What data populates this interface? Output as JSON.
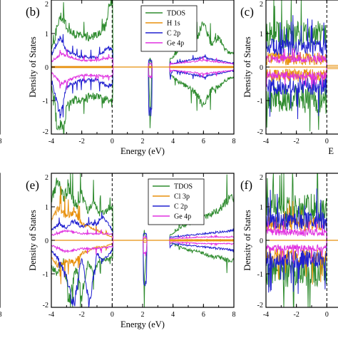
{
  "panels": [
    {
      "id": "a-partial",
      "letter": "",
      "x_label": "",
      "x_ticks": [
        "8"
      ],
      "y_ticks": [],
      "legend": [],
      "x_range": [
        -4,
        8
      ],
      "y_range": [
        -2,
        2
      ]
    },
    {
      "id": "b",
      "letter": "(b)",
      "x_label": "Energy (eV)",
      "y_label": "Density of States",
      "x_ticks": [
        "-4",
        "-2",
        "0",
        "2",
        "4",
        "6",
        "8"
      ],
      "y_ticks": [
        "2",
        "1",
        "0",
        "-1",
        "-2"
      ],
      "legend": [
        "TDOS",
        "H 1s",
        "C 2p",
        "Ge 4p"
      ],
      "x_range": [
        -4,
        8
      ],
      "y_range": [
        -2,
        2
      ]
    },
    {
      "id": "c",
      "letter": "(c)",
      "x_label": "E",
      "y_label": "Density of States",
      "x_ticks": [
        "-4",
        "-2",
        "0"
      ],
      "y_ticks": [
        "2",
        "1",
        "0",
        "-1",
        "-2"
      ],
      "legend": [],
      "x_range": [
        -4,
        8
      ],
      "y_range": [
        -2,
        2
      ]
    },
    {
      "id": "d-partial",
      "letter": "",
      "x_label": "",
      "x_ticks": [
        "8"
      ],
      "y_ticks": [],
      "legend": [],
      "x_range": [
        -4,
        8
      ],
      "y_range": [
        -2,
        2
      ]
    },
    {
      "id": "e",
      "letter": "(e)",
      "x_label": "Energy (eV)",
      "y_label": "Density of States",
      "x_ticks": [
        "-4",
        "-2",
        "0",
        "2",
        "4",
        "6",
        "8"
      ],
      "y_ticks": [
        "2",
        "1",
        "0",
        "-1",
        "-2"
      ],
      "legend": [
        "TDOS",
        "Cl 3p",
        "C 2p",
        "Ge 4p"
      ],
      "x_range": [
        -4,
        8
      ],
      "y_range": [
        -2,
        2
      ]
    },
    {
      "id": "f",
      "letter": "(f)",
      "x_label": "",
      "y_label": "Density of States",
      "x_ticks": [
        "-4",
        "-2",
        "0"
      ],
      "y_ticks": [
        "2",
        "1",
        "0",
        "-1",
        "-2"
      ],
      "legend": [],
      "x_range": [
        -4,
        8
      ],
      "y_range": [
        -2,
        2
      ]
    }
  ],
  "colors": {
    "TDOS": "#2e8b2e",
    "H 1s": "#e8900c",
    "Cl 3p": "#e8900c",
    "C 2p": "#2020d0",
    "Ge 4p": "#e030e0"
  },
  "chart_data": [
    {
      "type": "line",
      "panel": "b",
      "xlabel": "Energy (eV)",
      "ylabel": "Density of States",
      "xlim": [
        -4,
        8
      ],
      "ylim": [
        -2,
        2
      ],
      "fermi_level": 0,
      "series": [
        {
          "name": "TDOS",
          "x": [
            -4,
            -3.8,
            -3.6,
            -3.4,
            -3.2,
            -3,
            -2.5,
            -2,
            -1.5,
            -1,
            -0.5,
            -0.2,
            0,
            2.4,
            2.5,
            2.6,
            4,
            4.5,
            5,
            5.5,
            6,
            6.5,
            7,
            7.5,
            8
          ],
          "up": [
            0.6,
            0.8,
            1.3,
            1.6,
            1.5,
            1.2,
            1.0,
            0.95,
            0.9,
            1.0,
            1.2,
            1.8,
            2,
            0,
            0.3,
            0,
            0.3,
            0.6,
            1.2,
            0.8,
            1.4,
            0.7,
            0.9,
            0.5,
            0.4
          ],
          "down": [
            -0.6,
            -1.0,
            -2,
            -1.8,
            -2,
            -1.2,
            -1.0,
            -1.0,
            -0.9,
            -0.9,
            -1.0,
            -1.0,
            -1.0,
            0,
            -2,
            0,
            -0.3,
            -0.5,
            -0.6,
            -0.8,
            -1.2,
            -0.7,
            -0.6,
            -0.4,
            -0.3
          ]
        },
        {
          "name": "H 1s",
          "x": [
            -4,
            0,
            8
          ],
          "up": [
            0.02,
            0.02,
            0.02
          ],
          "down": [
            -0.02,
            -0.02,
            -0.02
          ]
        },
        {
          "name": "C 2p",
          "x": [
            -4,
            -3.6,
            -3.4,
            -3,
            -2,
            -1,
            -0.3,
            0,
            2.5,
            4,
            5,
            6,
            7,
            8
          ],
          "up": [
            0.3,
            0.8,
            0.9,
            0.5,
            0.3,
            0.3,
            0.6,
            0.5,
            0.2,
            0.1,
            0.2,
            0.3,
            0.2,
            0.1
          ],
          "down": [
            -0.3,
            -1.2,
            -1.5,
            -0.6,
            -0.4,
            -0.4,
            -0.6,
            -0.5,
            -1.4,
            -0.1,
            -0.2,
            -0.3,
            -0.2,
            -0.1
          ]
        },
        {
          "name": "Ge 4p",
          "x": [
            -4,
            -3.4,
            -2,
            -1,
            0,
            2.5,
            4,
            6,
            8
          ],
          "up": [
            0.15,
            0.4,
            0.2,
            0.2,
            0.3,
            0.1,
            0.1,
            0.2,
            0.1
          ],
          "down": [
            -0.15,
            -0.5,
            -0.25,
            -0.25,
            -0.3,
            -0.3,
            -0.1,
            -0.2,
            -0.1
          ]
        }
      ]
    },
    {
      "type": "line",
      "panel": "e",
      "xlabel": "Energy (eV)",
      "ylabel": "Density of States",
      "xlim": [
        -4,
        8
      ],
      "ylim": [
        -2,
        2
      ],
      "fermi_level": 0,
      "series": [
        {
          "name": "TDOS",
          "x": [
            -4,
            -3.6,
            -3.2,
            -2.8,
            -2.4,
            -2,
            -1.6,
            -1.2,
            -0.8,
            -0.4,
            0,
            2,
            2.1,
            2.3,
            4,
            4.5,
            5,
            5.5,
            6,
            6.5,
            7,
            7.5,
            8
          ],
          "up": [
            1.2,
            1.8,
            1.3,
            1.6,
            1.0,
            1.4,
            0.9,
            1.1,
            0.8,
            0.9,
            1.0,
            0,
            0.2,
            0,
            0.2,
            0.4,
            0.5,
            0.6,
            0.7,
            0.8,
            0.9,
            1.2,
            1.3
          ],
          "down": [
            -0.8,
            -1.0,
            -0.6,
            -1.9,
            -0.8,
            -1.7,
            -0.7,
            -0.9,
            -0.6,
            -0.6,
            -0.5,
            0,
            -1.3,
            0,
            -0.1,
            -0.2,
            -0.3,
            -0.3,
            -0.4,
            -0.5,
            -0.5,
            -0.6,
            -0.6
          ]
        },
        {
          "name": "Cl 3p",
          "x": [
            -4,
            -3.5,
            -3,
            -2.5,
            -2,
            -1.5,
            -1,
            -0.5,
            0,
            4,
            8
          ],
          "up": [
            0.6,
            1.0,
            0.7,
            0.9,
            0.5,
            0.4,
            0.3,
            0.2,
            0.1,
            0.02,
            0.02
          ],
          "down": [
            -0.5,
            -0.8,
            -0.6,
            -0.7,
            -0.4,
            -0.3,
            -0.2,
            -0.2,
            -0.1,
            -0.02,
            -0.02
          ]
        },
        {
          "name": "C 2p",
          "x": [
            -4,
            -3.5,
            -3,
            -2.5,
            -2,
            -1.5,
            -1,
            -0.5,
            0,
            2.1,
            4,
            6,
            8
          ],
          "up": [
            0.3,
            0.5,
            0.4,
            0.6,
            0.4,
            0.5,
            0.5,
            0.7,
            0.3,
            0.2,
            0.1,
            0.2,
            0.3
          ],
          "down": [
            -0.3,
            -0.6,
            -1.2,
            -2,
            -0.5,
            -1.9,
            -0.4,
            -0.6,
            -0.3,
            -1.3,
            -0.1,
            -0.2,
            -0.3
          ]
        },
        {
          "name": "Ge 4p",
          "x": [
            -4,
            -3,
            -2,
            -1,
            0,
            2.1,
            4,
            6,
            8
          ],
          "up": [
            0.15,
            0.3,
            0.2,
            0.2,
            0.2,
            0.1,
            0.05,
            0.1,
            0.1
          ],
          "down": [
            -0.15,
            -0.35,
            -0.25,
            -0.25,
            -0.2,
            -0.4,
            -0.05,
            -0.1,
            -0.1
          ]
        }
      ]
    }
  ]
}
